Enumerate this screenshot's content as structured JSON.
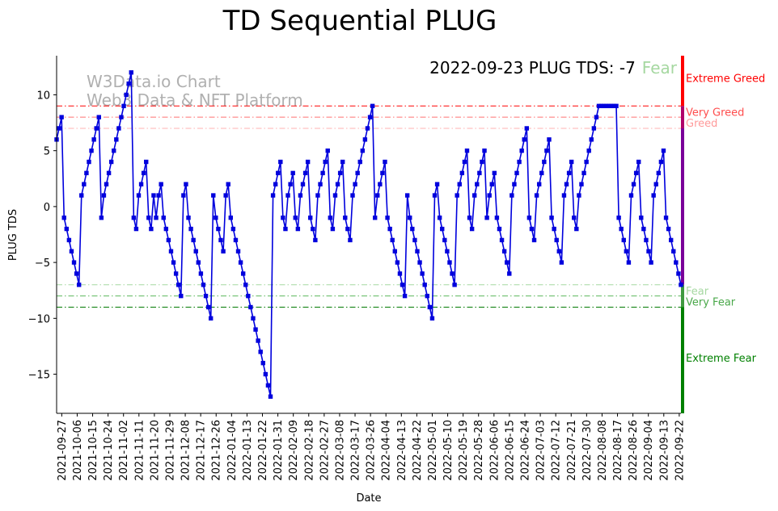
{
  "chart_data": {
    "type": "line",
    "title": "TD Sequential PLUG",
    "xlabel": "Date",
    "ylabel": "PLUG TDS",
    "ylim": [
      -18.5,
      13.5
    ],
    "yticks": [
      -15,
      -10,
      -5,
      0,
      5,
      10
    ],
    "ytick_labels": [
      "−15",
      "−10",
      "−5",
      "0",
      "5",
      "10"
    ],
    "watermark": [
      "W3Data.io Chart",
      "Web3 Data & NFT Platform"
    ],
    "status": {
      "text": "2022-09-23 PLUG TDS: -7",
      "sentiment": "Fear",
      "sentiment_color": "#a6d8a1"
    },
    "series_color": "#0000dd",
    "x_start": "2021-09-24",
    "x_end": "2022-09-23",
    "xticks": [
      "2021-09-27",
      "2021-10-06",
      "2021-10-15",
      "2021-10-24",
      "2021-11-02",
      "2021-11-11",
      "2021-11-20",
      "2021-11-29",
      "2021-12-08",
      "2021-12-17",
      "2021-12-26",
      "2022-01-04",
      "2022-01-13",
      "2022-01-22",
      "2022-01-31",
      "2022-02-09",
      "2022-02-18",
      "2022-02-27",
      "2022-03-08",
      "2022-03-17",
      "2022-03-26",
      "2022-04-04",
      "2022-04-13",
      "2022-04-22",
      "2022-05-01",
      "2022-05-10",
      "2022-05-19",
      "2022-05-28",
      "2022-06-06",
      "2022-06-15",
      "2022-06-24",
      "2022-07-03",
      "2022-07-12",
      "2022-07-21",
      "2022-07-30",
      "2022-08-08",
      "2022-08-17",
      "2022-08-26",
      "2022-09-04",
      "2022-09-13",
      "2022-09-22"
    ],
    "thresholds": [
      {
        "value": 9,
        "color": "#ff0000",
        "label": "Very Greed",
        "label_color": "#ff4d4d"
      },
      {
        "value": 8,
        "color": "#ff7070",
        "label": "Greed",
        "label_color": "#ff9a9a"
      },
      {
        "value": 7,
        "color": "#ffb0b0",
        "label": "",
        "label_color": "#ffb0b0"
      },
      {
        "value": -7,
        "color": "#a6d8a1",
        "label": "Fear",
        "label_color": "#a6d8a1"
      },
      {
        "value": -8,
        "color": "#5cb85c",
        "label": "Very Fear",
        "label_color": "#4aa84a"
      },
      {
        "value": -9,
        "color": "#007a00",
        "label": "",
        "label_color": "#007a00"
      }
    ],
    "zone_bar": [
      {
        "from": 9,
        "to": 13.5,
        "color": "#ff0000"
      },
      {
        "from": 7,
        "to": 9,
        "color": "#b0006a"
      },
      {
        "from": -7,
        "to": 7,
        "color": "#7a0099"
      },
      {
        "from": -9,
        "to": -7,
        "color": "#3f9a3f"
      },
      {
        "from": -18.5,
        "to": -9,
        "color": "#008000"
      }
    ],
    "zone_labels": [
      {
        "text": "Extreme Greed",
        "value": 11.5,
        "color": "#ff0000"
      },
      {
        "text": "Extreme Fear",
        "value": -13.5,
        "color": "#008000"
      }
    ],
    "values": [
      6,
      7,
      8,
      -1,
      -2,
      -3,
      -4,
      -5,
      -6,
      -7,
      1,
      2,
      3,
      4,
      5,
      6,
      7,
      8,
      -1,
      1,
      2,
      3,
      4,
      5,
      6,
      7,
      8,
      9,
      10,
      11,
      12,
      -1,
      -2,
      1,
      2,
      3,
      4,
      -1,
      -2,
      1,
      -1,
      1,
      2,
      -1,
      -2,
      -3,
      -4,
      -5,
      -6,
      -7,
      -8,
      1,
      2,
      -1,
      -2,
      -3,
      -4,
      -5,
      -6,
      -7,
      -8,
      -9,
      -10,
      1,
      -1,
      -2,
      -3,
      -4,
      1,
      2,
      -1,
      -2,
      -3,
      -4,
      -5,
      -6,
      -7,
      -8,
      -9,
      -10,
      -11,
      -12,
      -13,
      -14,
      -15,
      -16,
      -17,
      1,
      2,
      3,
      4,
      -1,
      -2,
      1,
      2,
      3,
      -1,
      -2,
      1,
      2,
      3,
      4,
      -1,
      -2,
      -3,
      1,
      2,
      3,
      4,
      5,
      -1,
      -2,
      1,
      2,
      3,
      4,
      -1,
      -2,
      -3,
      1,
      2,
      3,
      4,
      5,
      6,
      7,
      8,
      9,
      -1,
      1,
      2,
      3,
      4,
      -1,
      -2,
      -3,
      -4,
      -5,
      -6,
      -7,
      -8,
      1,
      -1,
      -2,
      -3,
      -4,
      -5,
      -6,
      -7,
      -8,
      -9,
      -10,
      1,
      2,
      -1,
      -2,
      -3,
      -4,
      -5,
      -6,
      -7,
      1,
      2,
      3,
      4,
      5,
      -1,
      -2,
      1,
      2,
      3,
      4,
      5,
      -1,
      1,
      2,
      3,
      -1,
      -2,
      -3,
      -4,
      -5,
      -6,
      1,
      2,
      3,
      4,
      5,
      6,
      7,
      -1,
      -2,
      -3,
      1,
      2,
      3,
      4,
      5,
      6,
      -1,
      -2,
      -3,
      -4,
      -5,
      1,
      2,
      3,
      4,
      -1,
      -2,
      1,
      2,
      3,
      4,
      5,
      6,
      7,
      8,
      9,
      9,
      9,
      9,
      9,
      9,
      9,
      9,
      -1,
      -2,
      -3,
      -4,
      -5,
      1,
      2,
      3,
      4,
      -1,
      -2,
      -3,
      -4,
      -5,
      1,
      2,
      3,
      4,
      5,
      -1,
      -2,
      -3,
      -4,
      -5,
      -6,
      -7
    ]
  }
}
